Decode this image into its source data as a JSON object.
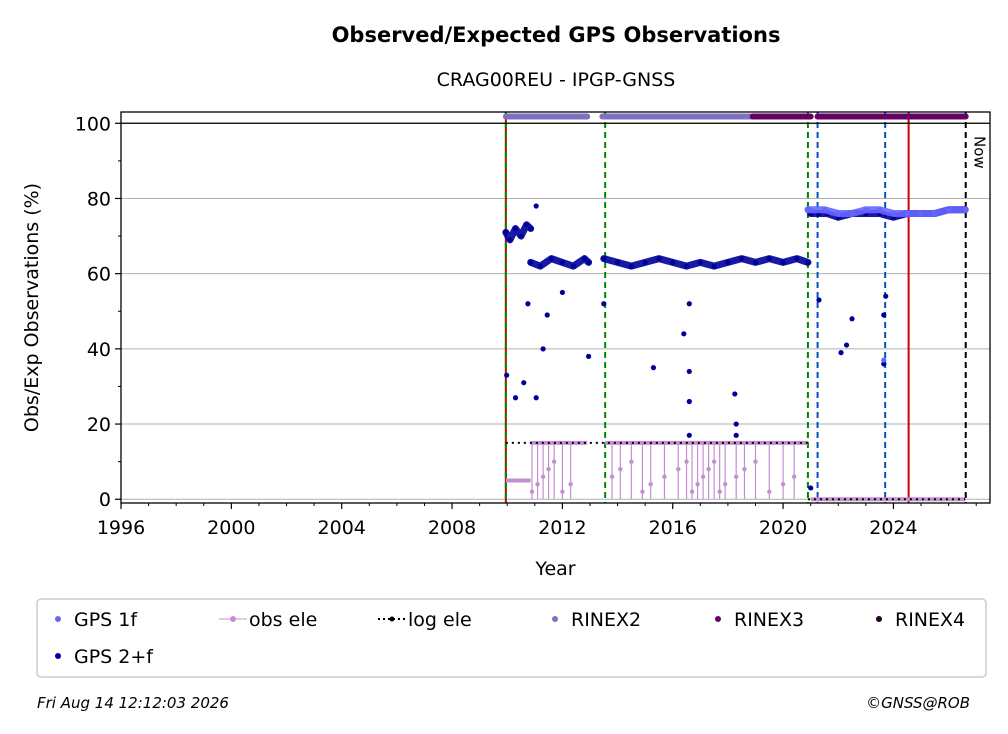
{
  "chart_data": {
    "type": "scatter",
    "title": "Observed/Expected GPS Observations",
    "subtitle": "CRAG00REU - IPGP-GNSS",
    "xlabel": "Year",
    "ylabel": "Obs/Exp Observations (%)",
    "xlim": [
      1996,
      2027.5
    ],
    "ylim": [
      -1,
      103
    ],
    "x_ticks": [
      1996,
      2000,
      2004,
      2008,
      2012,
      2016,
      2020,
      2024
    ],
    "y_ticks": [
      0,
      20,
      40,
      60,
      80,
      100
    ],
    "grid": "horizontal",
    "legend_position": "bottom",
    "now_label": "Now",
    "now_x": 2026.62,
    "legend": [
      {
        "label": "GPS 1f",
        "color": "#6666ff",
        "style": "dot"
      },
      {
        "label": "obs ele",
        "color": "#c48fd0",
        "style": "line-dot"
      },
      {
        "label": "log ele",
        "color": "#000000",
        "style": "dotted-line"
      },
      {
        "label": "RINEX2",
        "color": "#8070c0",
        "style": "dot"
      },
      {
        "label": "RINEX3",
        "color": "#660066",
        "style": "dot"
      },
      {
        "label": "RINEX4",
        "color": "#220022",
        "style": "dot"
      },
      {
        "label": "GPS 2+f",
        "color": "#000099",
        "style": "dot"
      }
    ],
    "vertical_lines": [
      {
        "x": 2009.95,
        "color": "#cc0000",
        "style": "solid"
      },
      {
        "x": 2009.95,
        "color": "#008800",
        "style": "dashed"
      },
      {
        "x": 2013.55,
        "color": "#008800",
        "style": "dashed"
      },
      {
        "x": 2020.9,
        "color": "#008800",
        "style": "dashed"
      },
      {
        "x": 2021.25,
        "color": "#0055bb",
        "style": "dashed"
      },
      {
        "x": 2023.7,
        "color": "#0055bb",
        "style": "dashed"
      },
      {
        "x": 2024.55,
        "color": "#cc0000",
        "style": "solid"
      },
      {
        "x": 2026.62,
        "color": "#000000",
        "style": "dashed"
      }
    ],
    "rinex_bars": [
      {
        "series": "RINEX2",
        "x_start": 2009.95,
        "x_end": 2012.9,
        "y": 101.8
      },
      {
        "series": "RINEX2",
        "x_start": 2013.45,
        "x_end": 2018.9,
        "y": 101.8
      },
      {
        "series": "RINEX3",
        "x_start": 2018.9,
        "x_end": 2021.0,
        "y": 101.8
      },
      {
        "series": "RINEX3",
        "x_start": 2021.25,
        "x_end": 2026.62,
        "y": 101.8
      }
    ],
    "series": [
      {
        "name": "GPS 2+f",
        "color": "#000099",
        "segments": [
          {
            "x": [
              2009.95,
              2010.1,
              2010.3,
              2010.5,
              2010.7,
              2010.85
            ],
            "y": [
              71,
              69,
              72,
              70,
              73,
              72
            ]
          },
          {
            "x": [
              2010.85,
              2011.2,
              2011.6,
              2012.0,
              2012.4,
              2012.8,
              2012.95
            ],
            "y": [
              63,
              62,
              64,
              63,
              62,
              64,
              63
            ]
          },
          {
            "x": [
              2013.5,
              2014.0,
              2014.5,
              2015.0,
              2015.5,
              2016.0,
              2016.5,
              2017.0,
              2017.5,
              2018.0,
              2018.5,
              2019.0,
              2019.5,
              2020.0,
              2020.5,
              2020.9
            ],
            "y": [
              64,
              63,
              62,
              63,
              64,
              63,
              62,
              63,
              62,
              63,
              64,
              63,
              64,
              63,
              64,
              63
            ]
          },
          {
            "x": [
              2021.0,
              2021.3,
              2021.6,
              2022.0,
              2022.5,
              2023.0,
              2023.5,
              2024.0,
              2024.5,
              2025.0,
              2025.5,
              2026.0,
              2026.6
            ],
            "y": [
              76,
              76,
              76,
              75,
              76,
              76,
              76,
              75,
              76,
              76,
              76,
              77,
              77
            ]
          }
        ],
        "outliers": [
          {
            "x": 2009.98,
            "y": 33
          },
          {
            "x": 2010.3,
            "y": 27
          },
          {
            "x": 2010.6,
            "y": 31
          },
          {
            "x": 2010.75,
            "y": 52
          },
          {
            "x": 2011.05,
            "y": 78
          },
          {
            "x": 2011.05,
            "y": 27
          },
          {
            "x": 2011.3,
            "y": 40
          },
          {
            "x": 2011.45,
            "y": 49
          },
          {
            "x": 2012.0,
            "y": 55
          },
          {
            "x": 2012.95,
            "y": 38
          },
          {
            "x": 2013.5,
            "y": 52
          },
          {
            "x": 2015.3,
            "y": 35
          },
          {
            "x": 2016.4,
            "y": 44
          },
          {
            "x": 2016.6,
            "y": 52
          },
          {
            "x": 2016.6,
            "y": 34
          },
          {
            "x": 2016.6,
            "y": 26
          },
          {
            "x": 2016.6,
            "y": 17
          },
          {
            "x": 2018.25,
            "y": 28
          },
          {
            "x": 2018.3,
            "y": 20
          },
          {
            "x": 2018.3,
            "y": 17
          },
          {
            "x": 2021.0,
            "y": 3
          },
          {
            "x": 2021.3,
            "y": 53
          },
          {
            "x": 2022.1,
            "y": 39
          },
          {
            "x": 2022.3,
            "y": 41
          },
          {
            "x": 2022.5,
            "y": 48
          },
          {
            "x": 2023.65,
            "y": 36
          },
          {
            "x": 2023.65,
            "y": 49
          },
          {
            "x": 2023.72,
            "y": 54
          }
        ]
      },
      {
        "name": "GPS 1f",
        "color": "#6666ff",
        "segments": [
          {
            "x": [
              2020.9,
              2021.0,
              2021.5,
              2022.0,
              2022.5,
              2023.0,
              2023.5,
              2024.0,
              2024.5,
              2025.0,
              2025.5,
              2026.0,
              2026.6
            ],
            "y": [
              77,
              77,
              77,
              76,
              76,
              77,
              77,
              76,
              76,
              76,
              76,
              77,
              77
            ]
          }
        ],
        "outliers": [
          {
            "x": 2023.65,
            "y": 37
          }
        ]
      },
      {
        "name": "obs ele",
        "color": "#c48fd0",
        "segments": [
          {
            "x": [
              2009.95,
              2010.85
            ],
            "y": [
              5,
              5
            ]
          },
          {
            "x": [
              2010.85,
              2012.9
            ],
            "y": [
              15,
              15
            ]
          },
          {
            "x": [
              2013.55,
              2016.5
            ],
            "y": [
              15,
              15
            ]
          },
          {
            "x": [
              2016.5,
              2018.0
            ],
            "y": [
              15,
              15
            ]
          },
          {
            "x": [
              2018.0,
              2020.9
            ],
            "y": [
              15,
              15
            ]
          },
          {
            "x": [
              2021.0,
              2026.6
            ],
            "y": [
              0,
              0
            ]
          }
        ],
        "drops_x": [
          2010.9,
          2011.1,
          2011.3,
          2011.5,
          2011.7,
          2012.0,
          2012.3,
          2013.8,
          2014.1,
          2014.5,
          2014.9,
          2015.2,
          2015.7,
          2016.2,
          2016.5,
          2016.7,
          2016.9,
          2017.1,
          2017.3,
          2017.5,
          2017.7,
          2017.9,
          2018.3,
          2018.6,
          2019.0,
          2019.5,
          2020.0,
          2020.4
        ]
      },
      {
        "name": "log ele",
        "color": "#000000",
        "segments": [
          {
            "x": [
              2009.95,
              2020.9
            ],
            "y": [
              15,
              15
            ]
          },
          {
            "x": [
              2020.9,
              2026.6
            ],
            "y": [
              0,
              0
            ]
          }
        ]
      }
    ]
  },
  "footer": {
    "timestamp": "Fri Aug 14 12:12:03 2026",
    "credit": "©GNSS@ROB"
  }
}
